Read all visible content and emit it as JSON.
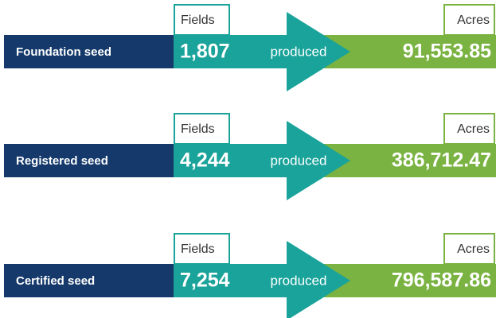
{
  "rows": [
    {
      "label": "Foundation seed",
      "fields_label": "Fields",
      "fields": "1,807",
      "produced": "produced",
      "acres_label": "Acres",
      "acres": "91,553.85"
    },
    {
      "label": "Registered seed",
      "fields_label": "Fields",
      "fields": "4,244",
      "produced": "produced",
      "acres_label": "Acres",
      "acres": "386,712.47"
    },
    {
      "label": "Certified seed",
      "fields_label": "Fields",
      "fields": "7,254",
      "produced": "produced",
      "acres_label": "Acres",
      "acres": "796,587.86"
    }
  ]
}
